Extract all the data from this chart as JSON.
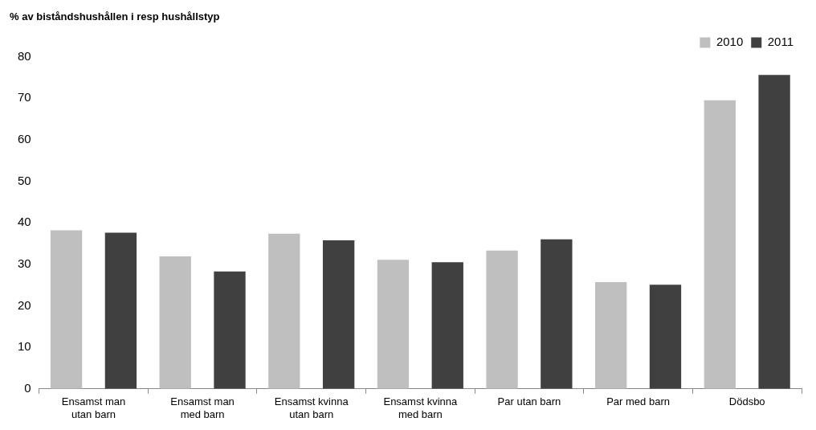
{
  "chart_data": {
    "type": "bar",
    "title": "% av biståndshushållen i resp hushållstyp",
    "categories": [
      "Ensamst man utan barn",
      "Ensamst man med barn",
      "Ensamst kvinna utan barn",
      "Ensamst kvinna med barn",
      "Par utan barn",
      "Par med barn",
      "Dödsbo"
    ],
    "series": [
      {
        "name": "2010",
        "color": "#bfbfbf",
        "values": [
          38.2,
          31.9,
          37.4,
          31.1,
          33.3,
          25.7,
          69.5
        ]
      },
      {
        "name": "2011",
        "color": "#404040",
        "values": [
          37.6,
          28.3,
          35.8,
          30.5,
          36.0,
          25.1,
          75.6
        ]
      }
    ],
    "ylim": [
      0,
      80
    ],
    "yticks": [
      0,
      10,
      20,
      30,
      40,
      50,
      60,
      70,
      80
    ],
    "grid": false,
    "legend": "top right"
  }
}
